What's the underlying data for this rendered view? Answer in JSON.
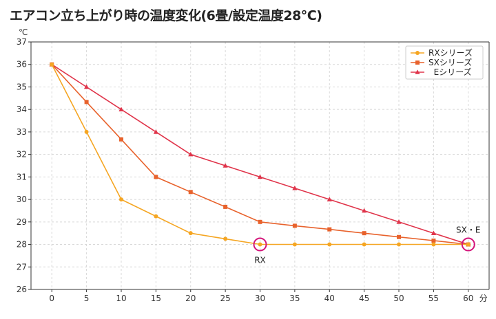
{
  "chart_data": {
    "type": "line",
    "title": "エアコン立ち上がり時の温度変化(6畳/設定温度28℃)",
    "y_unit": "℃",
    "x_unit": "分",
    "x": [
      0,
      5,
      10,
      15,
      20,
      25,
      30,
      35,
      40,
      45,
      50,
      55,
      60
    ],
    "xlim": [
      -3,
      63
    ],
    "ylim": [
      26,
      37
    ],
    "yticks": [
      26,
      27,
      28,
      29,
      30,
      31,
      32,
      33,
      34,
      35,
      36,
      37
    ],
    "grid": true,
    "legend_position": "top-right",
    "series": [
      {
        "name": "RXシリーズ",
        "color": "#f5a623",
        "marker": "circle",
        "values": [
          36,
          33,
          30,
          29.25,
          28.5,
          28.25,
          28,
          28,
          28,
          28,
          28,
          28,
          28
        ]
      },
      {
        "name": "SXシリーズ",
        "color": "#e8622c",
        "marker": "square",
        "values": [
          36,
          34.33,
          32.67,
          31,
          30.33,
          29.67,
          29,
          28.83,
          28.67,
          28.5,
          28.33,
          28.17,
          28
        ]
      },
      {
        "name": "  Eシリーズ",
        "color": "#e0354b",
        "marker": "triangle",
        "values": [
          36,
          35,
          34,
          33,
          32,
          31.5,
          31,
          30.5,
          30,
          29.5,
          29,
          28.5,
          28
        ]
      }
    ],
    "annotations": [
      {
        "text": "RX",
        "x": 30,
        "y": 28,
        "circle_color": "#d4147a"
      },
      {
        "text": "SX・E",
        "x": 60,
        "y": 28,
        "circle_color": "#d4147a"
      }
    ]
  }
}
